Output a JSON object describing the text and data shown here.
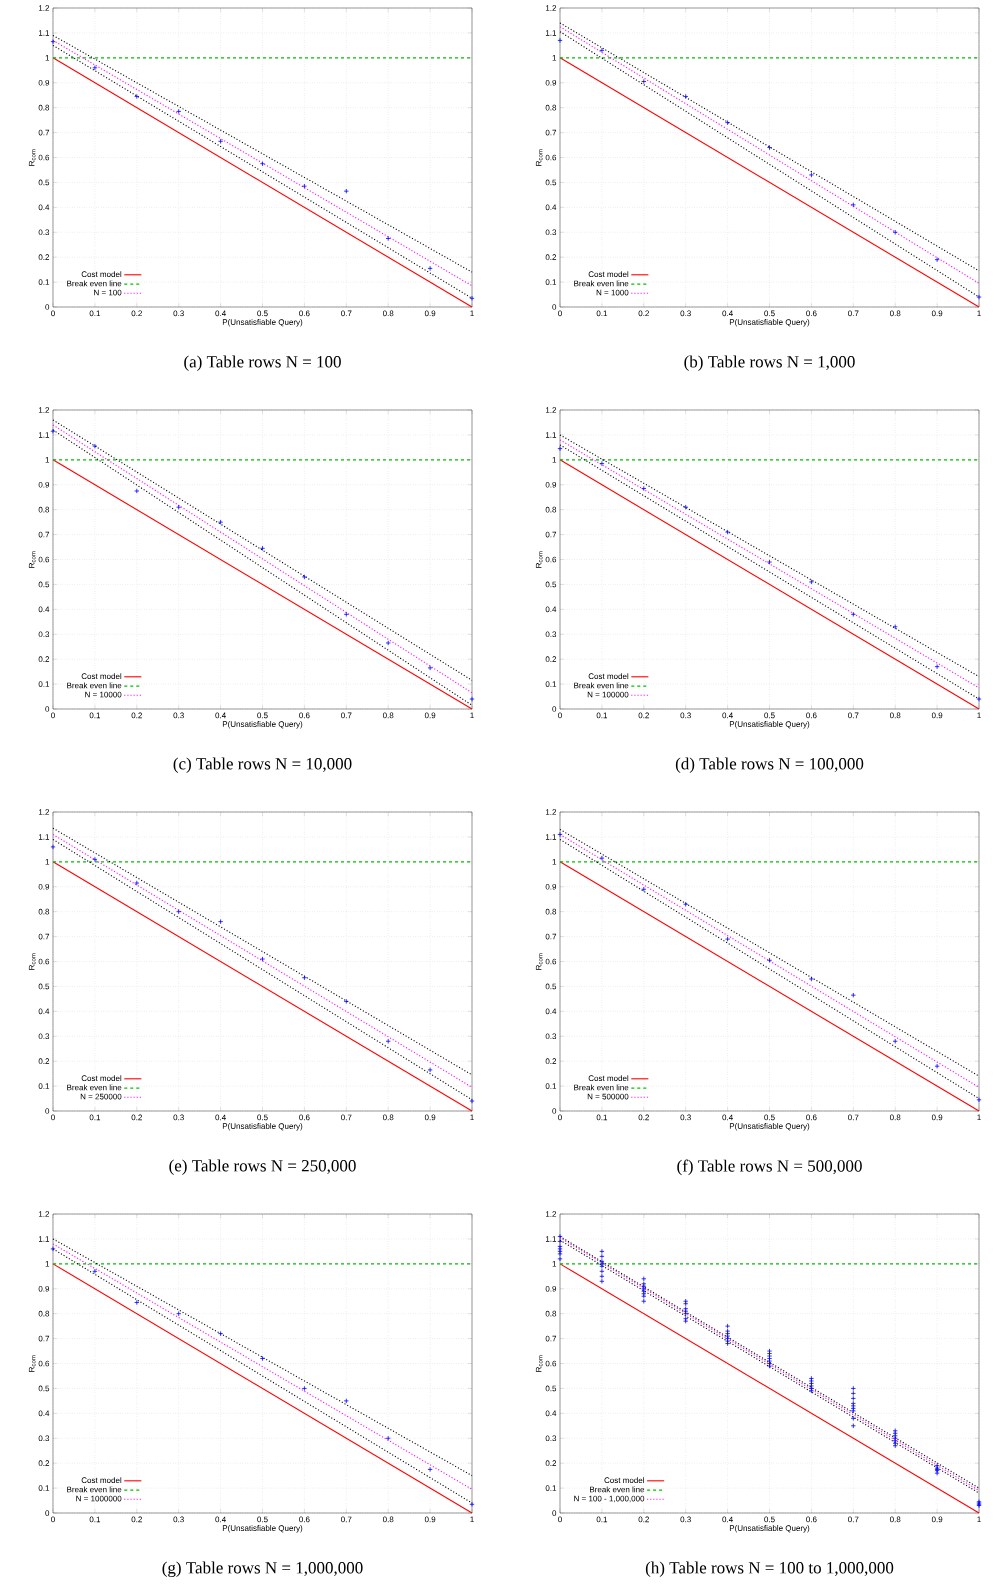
{
  "chart_data": [
    {
      "type": "line",
      "title": "(a) Table rows N = 100",
      "xlabel": "P(Unsatisfiable Query)",
      "ylabel": "R$_{com}$",
      "xlim": [
        0,
        1
      ],
      "ylim": [
        0,
        1.2
      ],
      "xticks": [
        0,
        0.1,
        0.2,
        0.3,
        0.4,
        0.5,
        0.6,
        0.7,
        0.8,
        0.9,
        1
      ],
      "yticks": [
        0,
        0.1,
        0.2,
        0.3,
        0.4,
        0.5,
        0.6,
        0.7,
        0.8,
        0.9,
        1,
        1.1,
        1.2
      ],
      "grid": true,
      "legend": "bottom left",
      "series": [
        {
          "name": "Cost model",
          "type": "line",
          "color": "#ff0000",
          "line_style": "solid",
          "x": [
            0,
            1
          ],
          "values": [
            1,
            0
          ]
        },
        {
          "name": "Break even line",
          "type": "line",
          "color": "#00c000",
          "line_style": "dashed",
          "x": [
            0,
            1
          ],
          "values": [
            1,
            1
          ]
        },
        {
          "name": "N = 100",
          "type": "line",
          "color": "#ff00ff",
          "line_style": "dotted",
          "x": [
            0,
            1
          ],
          "values": [
            1.07,
            0.085
          ]
        },
        {
          "type": "line",
          "color": "#000000",
          "line_style": "dotted",
          "x": [
            0,
            1
          ],
          "values": [
            1.09,
            0.14
          ]
        },
        {
          "type": "line",
          "color": "#000000",
          "line_style": "dotted",
          "x": [
            0,
            1
          ],
          "values": [
            1.05,
            0.035
          ]
        },
        {
          "type": "scatter",
          "color": "#0000ff",
          "marker": "cross",
          "x": [
            0,
            0.1,
            0.2,
            0.3,
            0.4,
            0.5,
            0.6,
            0.7,
            0.8,
            0.9,
            1
          ],
          "values": [
            1.065,
            0.96,
            0.845,
            0.785,
            0.665,
            0.575,
            0.485,
            0.465,
            0.275,
            0.155,
            0.035
          ]
        }
      ]
    },
    {
      "type": "line",
      "title": "(b) Table rows N = 1,000",
      "xlabel": "P(Unsatisfiable Query)",
      "ylabel": "R$_{com}$",
      "xlim": [
        0,
        1
      ],
      "ylim": [
        0,
        1.2
      ],
      "xticks": [
        0,
        0.1,
        0.2,
        0.3,
        0.4,
        0.5,
        0.6,
        0.7,
        0.8,
        0.9,
        1
      ],
      "yticks": [
        0,
        0.1,
        0.2,
        0.3,
        0.4,
        0.5,
        0.6,
        0.7,
        0.8,
        0.9,
        1,
        1.1,
        1.2
      ],
      "grid": true,
      "legend": "bottom left",
      "series": [
        {
          "name": "Cost model",
          "type": "line",
          "color": "#ff0000",
          "line_style": "solid",
          "x": [
            0,
            1
          ],
          "values": [
            1,
            0
          ]
        },
        {
          "name": "Break even line",
          "type": "line",
          "color": "#00c000",
          "line_style": "dashed",
          "x": [
            0,
            1
          ],
          "values": [
            1,
            1
          ]
        },
        {
          "name": "N = 1000",
          "type": "line",
          "color": "#ff00ff",
          "line_style": "dotted",
          "x": [
            0,
            1
          ],
          "values": [
            1.125,
            0.095
          ]
        },
        {
          "type": "line",
          "color": "#000000",
          "line_style": "dotted",
          "x": [
            0,
            1
          ],
          "values": [
            1.14,
            0.145
          ]
        },
        {
          "type": "line",
          "color": "#000000",
          "line_style": "dotted",
          "x": [
            0,
            1
          ],
          "values": [
            1.105,
            0.04
          ]
        },
        {
          "type": "scatter",
          "color": "#0000ff",
          "marker": "cross",
          "x": [
            0,
            0.1,
            0.2,
            0.3,
            0.4,
            0.5,
            0.6,
            0.7,
            0.8,
            0.9,
            1
          ],
          "values": [
            1.07,
            1.03,
            0.905,
            0.845,
            0.74,
            0.64,
            0.53,
            0.41,
            0.3,
            0.19,
            0.04
          ]
        }
      ]
    },
    {
      "type": "line",
      "title": "(c) Table rows N = 10,000",
      "xlabel": "P(Unsatisfiable Query)",
      "ylabel": "R$_{com}$",
      "xlim": [
        0,
        1
      ],
      "ylim": [
        0,
        1.2
      ],
      "xticks": [
        0,
        0.1,
        0.2,
        0.3,
        0.4,
        0.5,
        0.6,
        0.7,
        0.8,
        0.9,
        1
      ],
      "yticks": [
        0,
        0.1,
        0.2,
        0.3,
        0.4,
        0.5,
        0.6,
        0.7,
        0.8,
        0.9,
        1,
        1.1,
        1.2
      ],
      "grid": true,
      "legend": "bottom left",
      "series": [
        {
          "name": "Cost model",
          "type": "line",
          "color": "#ff0000",
          "line_style": "solid",
          "x": [
            0,
            1
          ],
          "values": [
            1,
            0
          ]
        },
        {
          "name": "Break even line",
          "type": "line",
          "color": "#00c000",
          "line_style": "dashed",
          "x": [
            0,
            1
          ],
          "values": [
            1,
            1
          ]
        },
        {
          "name": "N = 10000",
          "type": "line",
          "color": "#ff00ff",
          "line_style": "dotted",
          "x": [
            0,
            1
          ],
          "values": [
            1.14,
            0.065
          ]
        },
        {
          "type": "line",
          "color": "#000000",
          "line_style": "dotted",
          "x": [
            0,
            1
          ],
          "values": [
            1.16,
            0.115
          ]
        },
        {
          "type": "line",
          "color": "#000000",
          "line_style": "dotted",
          "x": [
            0,
            1
          ],
          "values": [
            1.12,
            0.015
          ]
        },
        {
          "type": "scatter",
          "color": "#0000ff",
          "marker": "cross",
          "x": [
            0,
            0.1,
            0.2,
            0.3,
            0.4,
            0.5,
            0.6,
            0.7,
            0.8,
            0.9,
            1
          ],
          "values": [
            1.115,
            1.055,
            0.875,
            0.81,
            0.75,
            0.645,
            0.53,
            0.38,
            0.265,
            0.165,
            0.04
          ]
        }
      ]
    },
    {
      "type": "line",
      "title": "(d) Table rows N = 100,000",
      "xlabel": "P(Unsatisfiable Query)",
      "ylabel": "R$_{com}$",
      "xlim": [
        0,
        1
      ],
      "ylim": [
        0,
        1.2
      ],
      "xticks": [
        0,
        0.1,
        0.2,
        0.3,
        0.4,
        0.5,
        0.6,
        0.7,
        0.8,
        0.9,
        1
      ],
      "yticks": [
        0,
        0.1,
        0.2,
        0.3,
        0.4,
        0.5,
        0.6,
        0.7,
        0.8,
        0.9,
        1,
        1.1,
        1.2
      ],
      "grid": true,
      "legend": "bottom left",
      "series": [
        {
          "name": "Cost model",
          "type": "line",
          "color": "#ff0000",
          "line_style": "solid",
          "x": [
            0,
            1
          ],
          "values": [
            1,
            0
          ]
        },
        {
          "name": "Break even line",
          "type": "line",
          "color": "#00c000",
          "line_style": "dashed",
          "x": [
            0,
            1
          ],
          "values": [
            1,
            1
          ]
        },
        {
          "name": "N = 100000",
          "type": "line",
          "color": "#ff00ff",
          "line_style": "dotted",
          "x": [
            0,
            1
          ],
          "values": [
            1.08,
            0.085
          ]
        },
        {
          "type": "line",
          "color": "#000000",
          "line_style": "dotted",
          "x": [
            0,
            1
          ],
          "values": [
            1.1,
            0.13
          ]
        },
        {
          "type": "line",
          "color": "#000000",
          "line_style": "dotted",
          "x": [
            0,
            1
          ],
          "values": [
            1.06,
            0.04
          ]
        },
        {
          "type": "scatter",
          "color": "#0000ff",
          "marker": "cross",
          "x": [
            0,
            0.1,
            0.2,
            0.3,
            0.4,
            0.5,
            0.6,
            0.7,
            0.8,
            0.9,
            1
          ],
          "values": [
            1.045,
            0.985,
            0.885,
            0.81,
            0.71,
            0.59,
            0.51,
            0.38,
            0.33,
            0.17,
            0.04
          ]
        }
      ]
    },
    {
      "type": "line",
      "title": "(e) Table rows N = 250,000",
      "xlabel": "P(Unsatisfiable Query)",
      "ylabel": "R$_{com}$",
      "xlim": [
        0,
        1
      ],
      "ylim": [
        0,
        1.2
      ],
      "xticks": [
        0,
        0.1,
        0.2,
        0.3,
        0.4,
        0.5,
        0.6,
        0.7,
        0.8,
        0.9,
        1
      ],
      "yticks": [
        0,
        0.1,
        0.2,
        0.3,
        0.4,
        0.5,
        0.6,
        0.7,
        0.8,
        0.9,
        1,
        1.1,
        1.2
      ],
      "grid": true,
      "legend": "bottom left",
      "series": [
        {
          "name": "Cost model",
          "type": "line",
          "color": "#ff0000",
          "line_style": "solid",
          "x": [
            0,
            1
          ],
          "values": [
            1,
            0
          ]
        },
        {
          "name": "Break even line",
          "type": "line",
          "color": "#00c000",
          "line_style": "dashed",
          "x": [
            0,
            1
          ],
          "values": [
            1,
            1
          ]
        },
        {
          "name": "N = 250000",
          "type": "line",
          "color": "#ff00ff",
          "line_style": "dotted",
          "x": [
            0,
            1
          ],
          "values": [
            1.11,
            0.095
          ]
        },
        {
          "type": "line",
          "color": "#000000",
          "line_style": "dotted",
          "x": [
            0,
            1
          ],
          "values": [
            1.135,
            0.145
          ]
        },
        {
          "type": "line",
          "color": "#000000",
          "line_style": "dotted",
          "x": [
            0,
            1
          ],
          "values": [
            1.09,
            0.045
          ]
        },
        {
          "type": "scatter",
          "color": "#0000ff",
          "marker": "cross",
          "x": [
            0,
            0.1,
            0.2,
            0.3,
            0.4,
            0.5,
            0.6,
            0.7,
            0.8,
            0.9,
            1
          ],
          "values": [
            1.06,
            1.01,
            0.915,
            0.8,
            0.76,
            0.61,
            0.535,
            0.44,
            0.28,
            0.165,
            0.04
          ]
        }
      ]
    },
    {
      "type": "line",
      "title": "(f) Table rows N = 500,000",
      "xlabel": "P(Unsatisfiable Query)",
      "ylabel": "R$_{com}$",
      "xlim": [
        0,
        1
      ],
      "ylim": [
        0,
        1.2
      ],
      "xticks": [
        0,
        0.1,
        0.2,
        0.3,
        0.4,
        0.5,
        0.6,
        0.7,
        0.8,
        0.9,
        1
      ],
      "yticks": [
        0,
        0.1,
        0.2,
        0.3,
        0.4,
        0.5,
        0.6,
        0.7,
        0.8,
        0.9,
        1,
        1.1,
        1.2
      ],
      "grid": true,
      "legend": "bottom left",
      "series": [
        {
          "name": "Cost model",
          "type": "line",
          "color": "#ff0000",
          "line_style": "solid",
          "x": [
            0,
            1
          ],
          "values": [
            1,
            0
          ]
        },
        {
          "name": "Break even line",
          "type": "line",
          "color": "#00c000",
          "line_style": "dashed",
          "x": [
            0,
            1
          ],
          "values": [
            1,
            1
          ]
        },
        {
          "name": "N = 500000",
          "type": "line",
          "color": "#ff00ff",
          "line_style": "dotted",
          "x": [
            0,
            1
          ],
          "values": [
            1.11,
            0.095
          ]
        },
        {
          "type": "line",
          "color": "#000000",
          "line_style": "dotted",
          "x": [
            0,
            1
          ],
          "values": [
            1.13,
            0.14
          ]
        },
        {
          "type": "line",
          "color": "#000000",
          "line_style": "dotted",
          "x": [
            0,
            1
          ],
          "values": [
            1.09,
            0.05
          ]
        },
        {
          "type": "scatter",
          "color": "#0000ff",
          "marker": "cross",
          "x": [
            0,
            0.1,
            0.2,
            0.3,
            0.4,
            0.5,
            0.6,
            0.7,
            0.8,
            0.9,
            1
          ],
          "values": [
            1.11,
            1.015,
            0.89,
            0.83,
            0.69,
            0.605,
            0.53,
            0.465,
            0.28,
            0.18,
            0.045
          ]
        }
      ]
    },
    {
      "type": "line",
      "title": "(g) Table rows N = 1,000,000",
      "xlabel": "P(Unsatisfiable Query)",
      "ylabel": "R$_{com}$",
      "xlim": [
        0,
        1
      ],
      "ylim": [
        0,
        1.2
      ],
      "xticks": [
        0,
        0.1,
        0.2,
        0.3,
        0.4,
        0.5,
        0.6,
        0.7,
        0.8,
        0.9,
        1
      ],
      "yticks": [
        0,
        0.1,
        0.2,
        0.3,
        0.4,
        0.5,
        0.6,
        0.7,
        0.8,
        0.9,
        1,
        1.1,
        1.2
      ],
      "grid": true,
      "legend": "bottom left",
      "series": [
        {
          "name": "Cost model",
          "type": "line",
          "color": "#ff0000",
          "line_style": "solid",
          "x": [
            0,
            1
          ],
          "values": [
            1,
            0
          ]
        },
        {
          "name": "Break even line",
          "type": "line",
          "color": "#00c000",
          "line_style": "dashed",
          "x": [
            0,
            1
          ],
          "values": [
            1,
            1
          ]
        },
        {
          "name": "N = 1000000",
          "type": "line",
          "color": "#ff00ff",
          "line_style": "dotted",
          "x": [
            0,
            1
          ],
          "values": [
            1.08,
            0.095
          ]
        },
        {
          "type": "line",
          "color": "#000000",
          "line_style": "dotted",
          "x": [
            0,
            1
          ],
          "values": [
            1.1,
            0.15
          ]
        },
        {
          "type": "line",
          "color": "#000000",
          "line_style": "dotted",
          "x": [
            0,
            1
          ],
          "values": [
            1.06,
            0.04
          ]
        },
        {
          "type": "scatter",
          "color": "#0000ff",
          "marker": "cross",
          "x": [
            0,
            0.1,
            0.2,
            0.3,
            0.4,
            0.5,
            0.6,
            0.7,
            0.8,
            0.9,
            1
          ],
          "values": [
            1.06,
            0.97,
            0.845,
            0.8,
            0.72,
            0.62,
            0.5,
            0.45,
            0.3,
            0.175,
            0.035
          ]
        }
      ]
    },
    {
      "type": "line",
      "title": "(h) Table rows N = 100 to 1,000,000",
      "xlabel": "P(Unsatisfiable Query)",
      "ylabel": "R$_{com}$",
      "xlim": [
        0,
        1
      ],
      "ylim": [
        0,
        1.2
      ],
      "xticks": [
        0,
        0.1,
        0.2,
        0.3,
        0.4,
        0.5,
        0.6,
        0.7,
        0.8,
        0.9,
        1
      ],
      "yticks": [
        0,
        0.1,
        0.2,
        0.3,
        0.4,
        0.5,
        0.6,
        0.7,
        0.8,
        0.9,
        1,
        1.1,
        1.2
      ],
      "grid": true,
      "legend": "bottom left",
      "series": [
        {
          "name": "Cost model",
          "type": "line",
          "color": "#ff0000",
          "line_style": "solid",
          "x": [
            0,
            1
          ],
          "values": [
            1,
            0
          ]
        },
        {
          "name": "Break even line",
          "type": "line",
          "color": "#00c000",
          "line_style": "dashed",
          "x": [
            0,
            1
          ],
          "values": [
            1,
            1
          ]
        },
        {
          "name": "N = 100 - 1,000,000",
          "type": "line",
          "color": "#ff00ff",
          "line_style": "dotted",
          "x": [
            0,
            1
          ],
          "values": [
            1.105,
            0.09
          ]
        },
        {
          "type": "line",
          "color": "#000000",
          "line_style": "dotted",
          "x": [
            0,
            1
          ],
          "values": [
            1.11,
            0.1
          ]
        },
        {
          "type": "line",
          "color": "#000000",
          "line_style": "dotted",
          "x": [
            0,
            1
          ],
          "values": [
            1.095,
            0.08
          ]
        },
        {
          "type": "scatter",
          "color": "#0000ff",
          "marker": "cross",
          "x": [
            0,
            0,
            0,
            0,
            0,
            0,
            0,
            0.1,
            0.1,
            0.1,
            0.1,
            0.1,
            0.1,
            0.1,
            0.1,
            0.2,
            0.2,
            0.2,
            0.2,
            0.2,
            0.2,
            0.2,
            0.2,
            0.3,
            0.3,
            0.3,
            0.3,
            0.3,
            0.3,
            0.3,
            0.4,
            0.4,
            0.4,
            0.4,
            0.4,
            0.4,
            0.4,
            0.5,
            0.5,
            0.5,
            0.5,
            0.5,
            0.5,
            0.5,
            0.6,
            0.6,
            0.6,
            0.6,
            0.6,
            0.6,
            0.7,
            0.7,
            0.7,
            0.7,
            0.7,
            0.7,
            0.7,
            0.7,
            0.7,
            0.8,
            0.8,
            0.8,
            0.8,
            0.8,
            0.8,
            0.8,
            0.9,
            0.9,
            0.9,
            0.9,
            0.9,
            1,
            1,
            1,
            1
          ],
          "values": [
            1.02,
            1.04,
            1.05,
            1.06,
            1.07,
            1.09,
            1.11,
            0.93,
            0.95,
            0.97,
            0.99,
            1.0,
            1.01,
            1.03,
            1.05,
            0.85,
            0.87,
            0.88,
            0.89,
            0.9,
            0.91,
            0.92,
            0.94,
            0.77,
            0.78,
            0.8,
            0.81,
            0.82,
            0.84,
            0.85,
            0.68,
            0.69,
            0.7,
            0.71,
            0.72,
            0.73,
            0.75,
            0.59,
            0.6,
            0.61,
            0.62,
            0.63,
            0.64,
            0.65,
            0.49,
            0.5,
            0.51,
            0.52,
            0.53,
            0.54,
            0.35,
            0.38,
            0.41,
            0.42,
            0.43,
            0.44,
            0.46,
            0.48,
            0.5,
            0.27,
            0.28,
            0.29,
            0.3,
            0.31,
            0.32,
            0.33,
            0.16,
            0.17,
            0.175,
            0.18,
            0.19,
            0.03,
            0.035,
            0.04,
            0.045
          ]
        }
      ]
    }
  ]
}
